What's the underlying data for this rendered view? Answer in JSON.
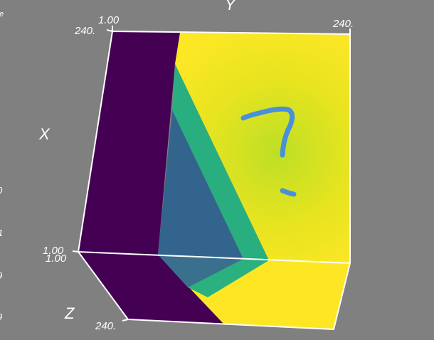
{
  "axes": {
    "x_label": "X",
    "y_label": "Y",
    "z_label": "Z"
  },
  "ticks": {
    "x_min": "1.00",
    "x_max": "240.",
    "y_min": "1.00",
    "y_max": "240.",
    "z_min": "1.00",
    "z_max": "240."
  },
  "clipped_left_labels": [
    "e",
    "0",
    "1",
    "9",
    "9"
  ],
  "annotation": {
    "type": "handwritten-question-mark",
    "color": "#4a8fd9"
  },
  "colors": {
    "background": "#808080",
    "dark_purple": "#440154",
    "teal_blue": "#31688e",
    "green": "#2db27d",
    "yellow": "#fde725",
    "yellow_green": "#c8e020",
    "box_edges": "#ffffff"
  }
}
